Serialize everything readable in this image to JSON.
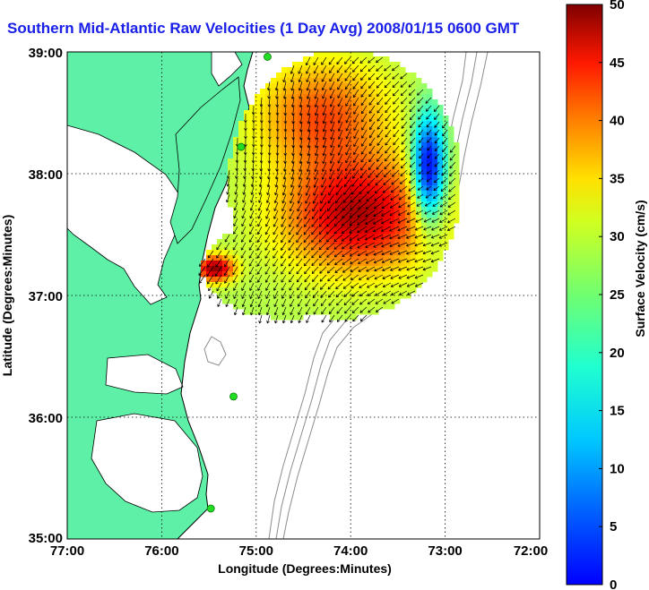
{
  "title": "Southern Mid-Atlantic Raw Velocities (1 Day Avg) 2008/01/15 0600 GMT",
  "map": {
    "xlabel": "Longitude (Degrees:Minutes)",
    "ylabel": "Latitude (Degrees:Minutes)",
    "x_ticks": [
      "77:00",
      "76:00",
      "75:00",
      "74:00",
      "73:00",
      "72:00"
    ],
    "y_ticks": [
      "39:00",
      "38:00",
      "37:00",
      "36:00",
      "35:00"
    ],
    "lon_range": [
      -77,
      -72
    ],
    "lat_range": [
      35,
      39
    ],
    "grid": true,
    "land_color": "#5ef0a6",
    "coast_color": "#000000",
    "bathymetry_color": "#8c8c8c",
    "station_color": "#22dd22",
    "stations": [
      {
        "lon": -74.88,
        "lat": 38.96
      },
      {
        "lon": -75.16,
        "lat": 38.22
      },
      {
        "lon": -75.24,
        "lat": 36.17
      },
      {
        "lon": -75.48,
        "lat": 35.25
      }
    ]
  },
  "colorbar": {
    "label": "Surface Velocity (cm/s)",
    "min": 0,
    "max": 50,
    "ticks": [
      "0",
      "5",
      "10",
      "15",
      "20",
      "25",
      "30",
      "35",
      "40",
      "45",
      "50"
    ],
    "colormap": "jet"
  }
}
